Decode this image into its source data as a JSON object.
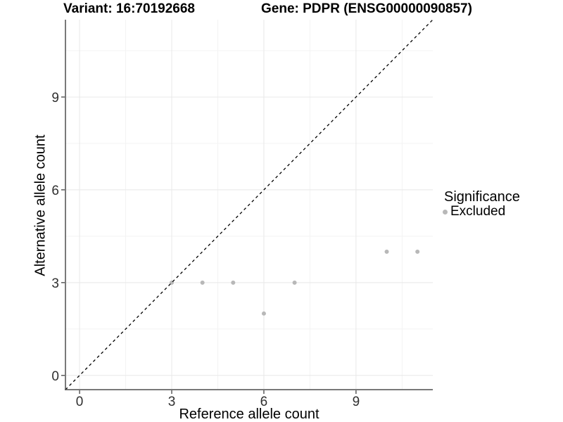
{
  "figure": {
    "title_left": "Variant: 16:70192668",
    "title_right": "Gene: PDPR (ENSG00000090857)"
  },
  "chart_data": {
    "type": "scatter",
    "title": "Variant: 16:70192668   Gene: PDPR (ENSG00000090857)",
    "xlabel": "Reference allele count",
    "ylabel": "Alternative allele count",
    "xlim": [
      -0.46,
      11.5
    ],
    "ylim": [
      -0.46,
      11.5
    ],
    "x_ticks": [
      0,
      3,
      6,
      9
    ],
    "y_ticks": [
      0,
      3,
      6,
      9
    ],
    "x_minor_ticks": [
      1.5,
      4.5,
      7.5,
      10.5
    ],
    "y_minor_ticks": [
      1.5,
      4.5,
      7.5,
      10.5
    ],
    "grid": true,
    "series": [
      {
        "name": "Excluded",
        "color": "#b8b8b8",
        "points": [
          [
            3,
            3
          ],
          [
            4,
            3
          ],
          [
            5,
            3
          ],
          [
            6,
            2
          ],
          [
            7,
            3
          ],
          [
            10,
            4
          ],
          [
            11,
            4
          ]
        ]
      }
    ],
    "reference_line": {
      "kind": "identity",
      "slope": 1,
      "intercept": 0,
      "style": "dashed",
      "color": "#000000"
    },
    "legend": {
      "title": "Significance",
      "position": "right",
      "entries": [
        {
          "label": "Excluded",
          "color": "#b8b8b8",
          "marker": "circle"
        }
      ]
    }
  },
  "colors": {
    "background": "#ffffff",
    "grid_major": "#e8e8e8",
    "grid_minor": "#f3f3f3",
    "axis_line": "#4d4d4d",
    "tick": "#333333",
    "tick_label": "#303030",
    "text": "#000000",
    "point": "#b8b8b8"
  }
}
